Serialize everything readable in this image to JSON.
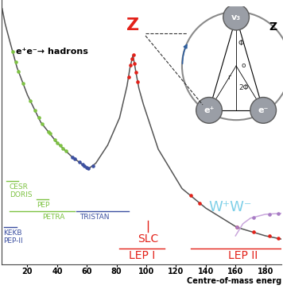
{
  "chart_data": {
    "type": "line",
    "xlabel": "Centre-of-mass energ",
    "xlim": [
      2.5,
      191
    ],
    "xticks": [
      20,
      40,
      60,
      80,
      100,
      120,
      140,
      160,
      180
    ],
    "ylim": [
      0.75,
      490000
    ],
    "yticks": [],
    "log": "y",
    "tick_labels": "x",
    "grid": false,
    "series": [
      {
        "type": "line",
        "color": "#555555",
        "x": [
          3,
          5,
          8,
          13,
          20,
          29,
          40,
          50,
          61,
          66,
          74,
          82,
          87,
          89,
          91,
          93,
          95,
          98,
          108,
          124,
          140,
          161,
          180,
          191
        ],
        "values": [
          316000,
          148000,
          63000,
          16000,
          4000,
          1000,
          355,
          174,
          95,
          126,
          316,
          1260,
          6300,
          16000,
          30000,
          12600,
          5600,
          2500,
          257,
          35,
          13,
          4.9,
          3.2,
          2.7
        ]
      },
      {
        "type": "scatter",
        "marker": "circle",
        "color": "#7dc242",
        "x": [
          10,
          12,
          14,
          17,
          22,
          25,
          27.5,
          30,
          34,
          35,
          38.3,
          40,
          42,
          44,
          46
        ],
        "values": [
          36000,
          21000,
          12900,
          7200,
          2950,
          1820,
          1260,
          910,
          630,
          575,
          417,
          355,
          309,
          269,
          234
        ]
      },
      {
        "type": "scatter",
        "marker": "circle",
        "color": "#3b4fa0",
        "x": [
          50,
          52,
          55,
          57,
          58,
          60,
          61,
          64
        ],
        "values": [
          174,
          155,
          132,
          117,
          112,
          100,
          98,
          110
        ]
      },
      {
        "type": "scatter",
        "marker": "circle",
        "color": "#e32119",
        "x": [
          88.2,
          89.2,
          90.2,
          91.2,
          92.0,
          93.0,
          94.0,
          130,
          136,
          161,
          172,
          183,
          189
        ],
        "values": [
          10000,
          17800,
          25000,
          30000,
          20000,
          12600,
          7900,
          24.5,
          16.6,
          4.9,
          3.9,
          3.2,
          2.8
        ]
      },
      {
        "type": "line",
        "color": "#c9a6dc",
        "x": [
          160,
          165,
          170,
          180,
          191
        ],
        "values": [
          3.2,
          5.9,
          7.8,
          9.5,
          10
        ]
      },
      {
        "type": "scatter",
        "marker": "circle",
        "color": "#a77bc4",
        "x": [
          161,
          172,
          183,
          189
        ],
        "values": [
          5.0,
          8.2,
          9.6,
          9.9
        ]
      }
    ],
    "annotations": [
      {
        "text": "e⁺e⁻→ hadrons",
        "x": 12,
        "color": "#000000"
      },
      {
        "text": "Z",
        "x": 91,
        "color": "#e32119"
      },
      {
        "text": "CESR",
        "x": 7.8,
        "color": "#7dc242",
        "range": [
          6,
          14
        ]
      },
      {
        "text": "DORIS",
        "x": 7.8,
        "color": "#7dc242"
      },
      {
        "text": "PEP",
        "x": 26,
        "color": "#7dc242",
        "range": [
          26,
          34
        ]
      },
      {
        "text": "PETRA",
        "x": 30,
        "color": "#7dc242",
        "range": [
          8,
          52
        ]
      },
      {
        "text": "TRISTAN",
        "x": 55,
        "color": "#3b4fa0",
        "range": [
          53,
          88
        ]
      },
      {
        "text": "KEKB",
        "x": 4,
        "color": "#3b4fa0",
        "range": [
          4,
          13
        ]
      },
      {
        "text": "PEP-II",
        "x": 4,
        "color": "#3b4fa0"
      },
      {
        "text": "SLC",
        "x": 101,
        "color": "#e32119",
        "marker": "vline"
      },
      {
        "text": "LEP I",
        "x": 97,
        "color": "#e32119",
        "range": [
          82,
          112
        ]
      },
      {
        "text": "LEP II",
        "x": 165,
        "color": "#e32119",
        "range": [
          130,
          209
        ]
      },
      {
        "text": "W⁺W⁻",
        "x": 142,
        "color": "#7fd0e8"
      }
    ]
  },
  "inset": {
    "title": "Z",
    "nodes": [
      "v₃",
      "e⁺",
      "e⁻"
    ],
    "symbols": [
      "Φ",
      "r",
      "o",
      "2Φ"
    ]
  }
}
